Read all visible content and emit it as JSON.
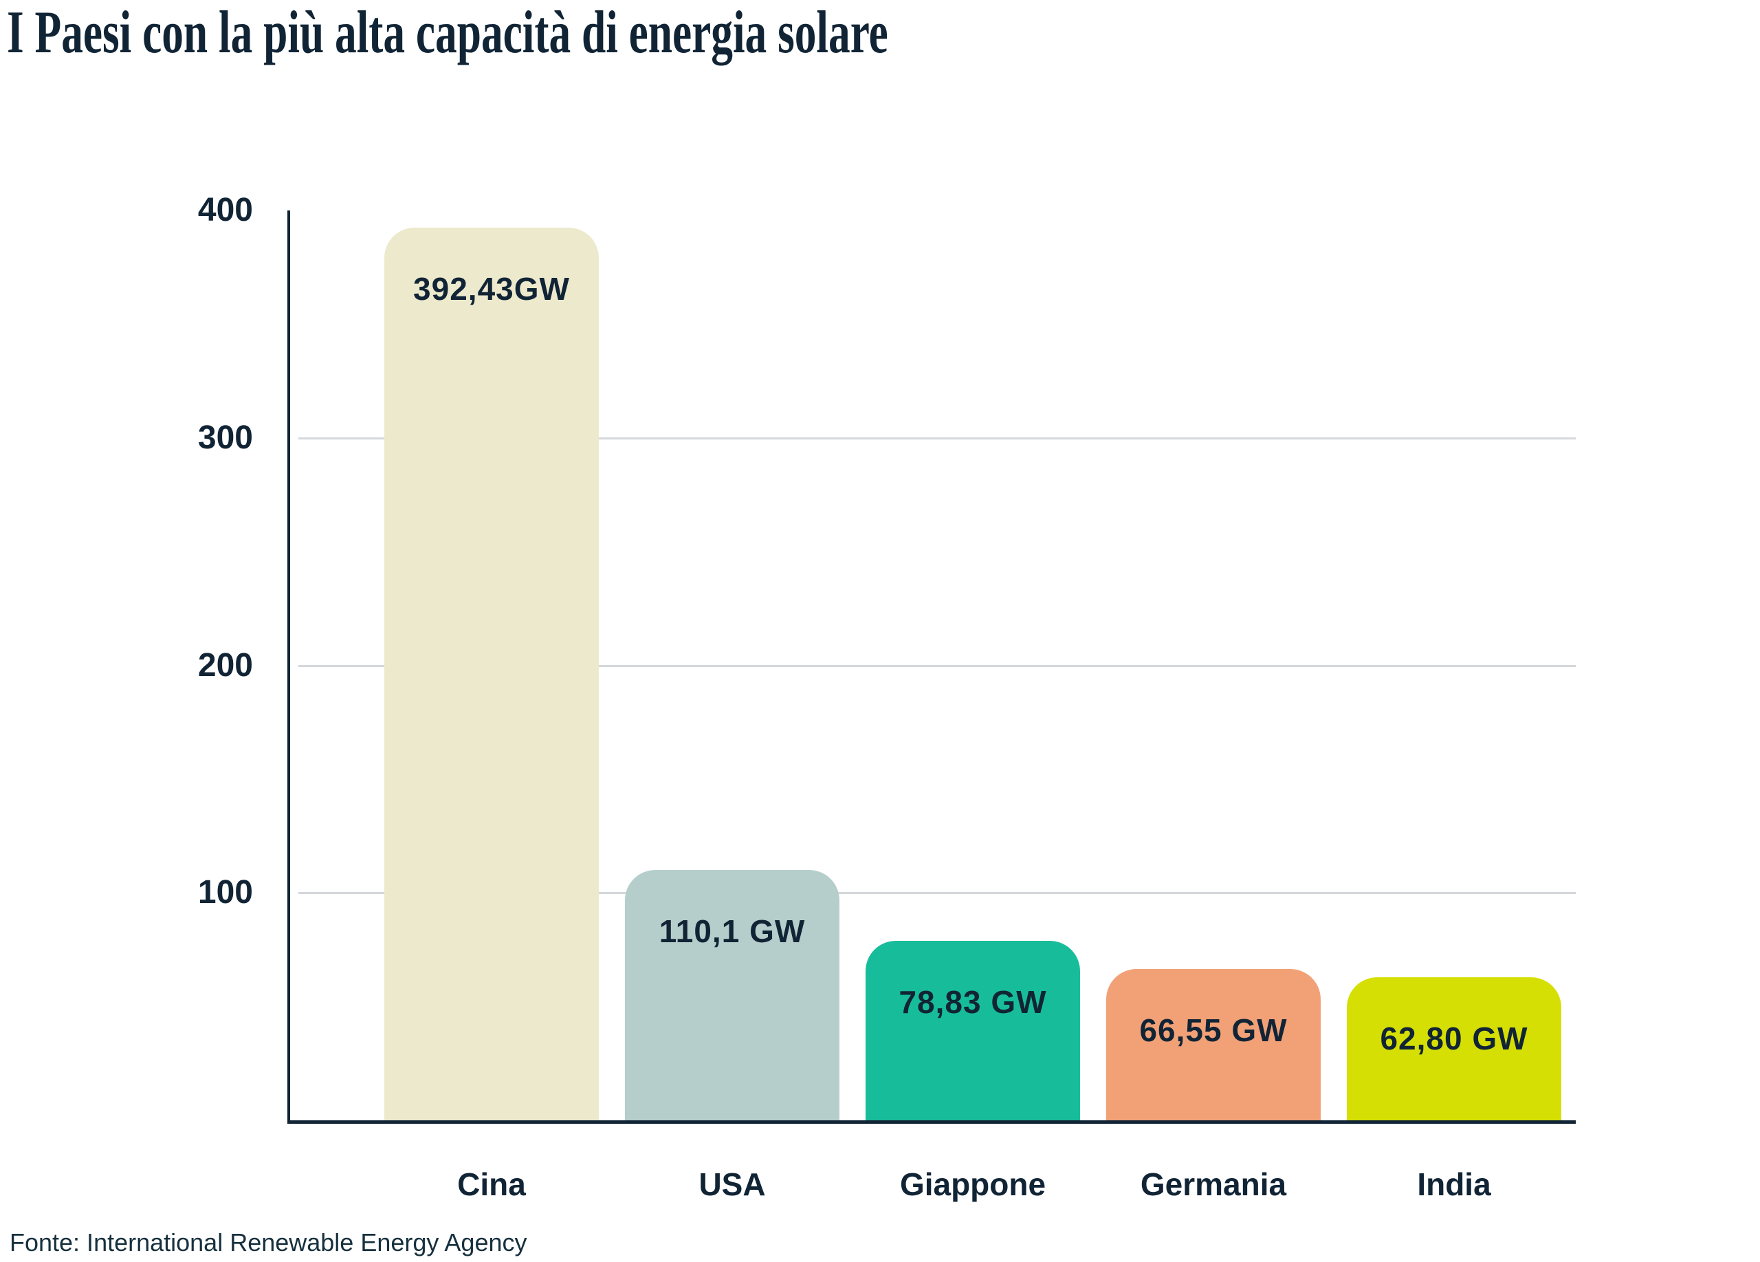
{
  "chart_data": {
    "type": "bar",
    "title": "I Paesi con la più alta capacità di energia solare",
    "categories": [
      "Cina",
      "USA",
      "Giappone",
      "Germania",
      "India"
    ],
    "values": [
      392.43,
      110.1,
      78.83,
      66.55,
      62.8
    ],
    "value_labels": [
      "392,43GW",
      "110,1 GW",
      "78,83 GW",
      "66,55 GW",
      "62,80 GW"
    ],
    "bar_colors": [
      "#EDE9CD",
      "#B5CECB",
      "#17BD9A",
      "#F2A177",
      "#D5DF04"
    ],
    "unit": "GW",
    "xlabel": "",
    "ylabel": "",
    "ylim": [
      0,
      400
    ],
    "yticks": [
      400,
      300,
      200,
      100
    ],
    "grid": "horizontal gridlines at 300, 200, 100 only",
    "legend": "none",
    "source": "Fonte: International Renewable Energy Agency",
    "colors": {
      "axis": "#112435",
      "gridline": "#D4D8DB",
      "text": "#112435",
      "background": "#FFFFFF"
    }
  }
}
